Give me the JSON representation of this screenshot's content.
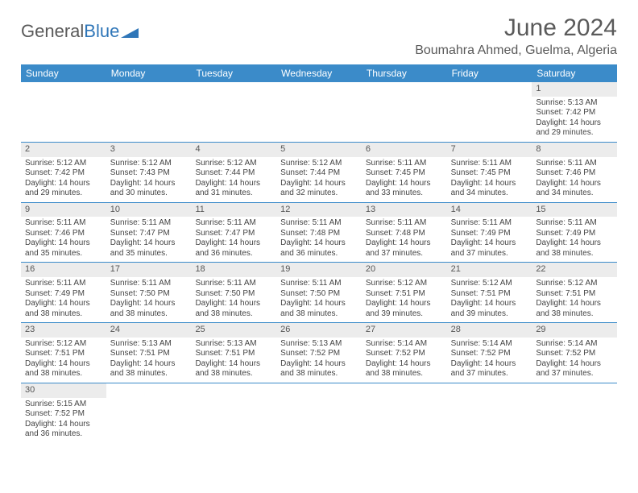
{
  "logo": {
    "text1": "General",
    "text2": "Blue",
    "triangle_color": "#2f76b8"
  },
  "title": "June 2024",
  "location": "Boumahra Ahmed, Guelma, Algeria",
  "header_bg": "#3b8bc9",
  "header_text_color": "#ffffff",
  "shaded_bg": "#ececec",
  "border_color": "#3b8bc9",
  "weekdays": [
    "Sunday",
    "Monday",
    "Tuesday",
    "Wednesday",
    "Thursday",
    "Friday",
    "Saturday"
  ],
  "weeks": [
    [
      {
        "day": "",
        "sunrise": "",
        "sunset": "",
        "daylight1": "",
        "daylight2": ""
      },
      {
        "day": "",
        "sunrise": "",
        "sunset": "",
        "daylight1": "",
        "daylight2": ""
      },
      {
        "day": "",
        "sunrise": "",
        "sunset": "",
        "daylight1": "",
        "daylight2": ""
      },
      {
        "day": "",
        "sunrise": "",
        "sunset": "",
        "daylight1": "",
        "daylight2": ""
      },
      {
        "day": "",
        "sunrise": "",
        "sunset": "",
        "daylight1": "",
        "daylight2": ""
      },
      {
        "day": "",
        "sunrise": "",
        "sunset": "",
        "daylight1": "",
        "daylight2": ""
      },
      {
        "day": "1",
        "sunrise": "Sunrise: 5:13 AM",
        "sunset": "Sunset: 7:42 PM",
        "daylight1": "Daylight: 14 hours",
        "daylight2": "and 29 minutes."
      }
    ],
    [
      {
        "day": "2",
        "sunrise": "Sunrise: 5:12 AM",
        "sunset": "Sunset: 7:42 PM",
        "daylight1": "Daylight: 14 hours",
        "daylight2": "and 29 minutes."
      },
      {
        "day": "3",
        "sunrise": "Sunrise: 5:12 AM",
        "sunset": "Sunset: 7:43 PM",
        "daylight1": "Daylight: 14 hours",
        "daylight2": "and 30 minutes."
      },
      {
        "day": "4",
        "sunrise": "Sunrise: 5:12 AM",
        "sunset": "Sunset: 7:44 PM",
        "daylight1": "Daylight: 14 hours",
        "daylight2": "and 31 minutes."
      },
      {
        "day": "5",
        "sunrise": "Sunrise: 5:12 AM",
        "sunset": "Sunset: 7:44 PM",
        "daylight1": "Daylight: 14 hours",
        "daylight2": "and 32 minutes."
      },
      {
        "day": "6",
        "sunrise": "Sunrise: 5:11 AM",
        "sunset": "Sunset: 7:45 PM",
        "daylight1": "Daylight: 14 hours",
        "daylight2": "and 33 minutes."
      },
      {
        "day": "7",
        "sunrise": "Sunrise: 5:11 AM",
        "sunset": "Sunset: 7:45 PM",
        "daylight1": "Daylight: 14 hours",
        "daylight2": "and 34 minutes."
      },
      {
        "day": "8",
        "sunrise": "Sunrise: 5:11 AM",
        "sunset": "Sunset: 7:46 PM",
        "daylight1": "Daylight: 14 hours",
        "daylight2": "and 34 minutes."
      }
    ],
    [
      {
        "day": "9",
        "sunrise": "Sunrise: 5:11 AM",
        "sunset": "Sunset: 7:46 PM",
        "daylight1": "Daylight: 14 hours",
        "daylight2": "and 35 minutes."
      },
      {
        "day": "10",
        "sunrise": "Sunrise: 5:11 AM",
        "sunset": "Sunset: 7:47 PM",
        "daylight1": "Daylight: 14 hours",
        "daylight2": "and 35 minutes."
      },
      {
        "day": "11",
        "sunrise": "Sunrise: 5:11 AM",
        "sunset": "Sunset: 7:47 PM",
        "daylight1": "Daylight: 14 hours",
        "daylight2": "and 36 minutes."
      },
      {
        "day": "12",
        "sunrise": "Sunrise: 5:11 AM",
        "sunset": "Sunset: 7:48 PM",
        "daylight1": "Daylight: 14 hours",
        "daylight2": "and 36 minutes."
      },
      {
        "day": "13",
        "sunrise": "Sunrise: 5:11 AM",
        "sunset": "Sunset: 7:48 PM",
        "daylight1": "Daylight: 14 hours",
        "daylight2": "and 37 minutes."
      },
      {
        "day": "14",
        "sunrise": "Sunrise: 5:11 AM",
        "sunset": "Sunset: 7:49 PM",
        "daylight1": "Daylight: 14 hours",
        "daylight2": "and 37 minutes."
      },
      {
        "day": "15",
        "sunrise": "Sunrise: 5:11 AM",
        "sunset": "Sunset: 7:49 PM",
        "daylight1": "Daylight: 14 hours",
        "daylight2": "and 38 minutes."
      }
    ],
    [
      {
        "day": "16",
        "sunrise": "Sunrise: 5:11 AM",
        "sunset": "Sunset: 7:49 PM",
        "daylight1": "Daylight: 14 hours",
        "daylight2": "and 38 minutes."
      },
      {
        "day": "17",
        "sunrise": "Sunrise: 5:11 AM",
        "sunset": "Sunset: 7:50 PM",
        "daylight1": "Daylight: 14 hours",
        "daylight2": "and 38 minutes."
      },
      {
        "day": "18",
        "sunrise": "Sunrise: 5:11 AM",
        "sunset": "Sunset: 7:50 PM",
        "daylight1": "Daylight: 14 hours",
        "daylight2": "and 38 minutes."
      },
      {
        "day": "19",
        "sunrise": "Sunrise: 5:11 AM",
        "sunset": "Sunset: 7:50 PM",
        "daylight1": "Daylight: 14 hours",
        "daylight2": "and 38 minutes."
      },
      {
        "day": "20",
        "sunrise": "Sunrise: 5:12 AM",
        "sunset": "Sunset: 7:51 PM",
        "daylight1": "Daylight: 14 hours",
        "daylight2": "and 39 minutes."
      },
      {
        "day": "21",
        "sunrise": "Sunrise: 5:12 AM",
        "sunset": "Sunset: 7:51 PM",
        "daylight1": "Daylight: 14 hours",
        "daylight2": "and 39 minutes."
      },
      {
        "day": "22",
        "sunrise": "Sunrise: 5:12 AM",
        "sunset": "Sunset: 7:51 PM",
        "daylight1": "Daylight: 14 hours",
        "daylight2": "and 38 minutes."
      }
    ],
    [
      {
        "day": "23",
        "sunrise": "Sunrise: 5:12 AM",
        "sunset": "Sunset: 7:51 PM",
        "daylight1": "Daylight: 14 hours",
        "daylight2": "and 38 minutes."
      },
      {
        "day": "24",
        "sunrise": "Sunrise: 5:13 AM",
        "sunset": "Sunset: 7:51 PM",
        "daylight1": "Daylight: 14 hours",
        "daylight2": "and 38 minutes."
      },
      {
        "day": "25",
        "sunrise": "Sunrise: 5:13 AM",
        "sunset": "Sunset: 7:51 PM",
        "daylight1": "Daylight: 14 hours",
        "daylight2": "and 38 minutes."
      },
      {
        "day": "26",
        "sunrise": "Sunrise: 5:13 AM",
        "sunset": "Sunset: 7:52 PM",
        "daylight1": "Daylight: 14 hours",
        "daylight2": "and 38 minutes."
      },
      {
        "day": "27",
        "sunrise": "Sunrise: 5:14 AM",
        "sunset": "Sunset: 7:52 PM",
        "daylight1": "Daylight: 14 hours",
        "daylight2": "and 38 minutes."
      },
      {
        "day": "28",
        "sunrise": "Sunrise: 5:14 AM",
        "sunset": "Sunset: 7:52 PM",
        "daylight1": "Daylight: 14 hours",
        "daylight2": "and 37 minutes."
      },
      {
        "day": "29",
        "sunrise": "Sunrise: 5:14 AM",
        "sunset": "Sunset: 7:52 PM",
        "daylight1": "Daylight: 14 hours",
        "daylight2": "and 37 minutes."
      }
    ],
    [
      {
        "day": "30",
        "sunrise": "Sunrise: 5:15 AM",
        "sunset": "Sunset: 7:52 PM",
        "daylight1": "Daylight: 14 hours",
        "daylight2": "and 36 minutes."
      },
      {
        "day": "",
        "sunrise": "",
        "sunset": "",
        "daylight1": "",
        "daylight2": ""
      },
      {
        "day": "",
        "sunrise": "",
        "sunset": "",
        "daylight1": "",
        "daylight2": ""
      },
      {
        "day": "",
        "sunrise": "",
        "sunset": "",
        "daylight1": "",
        "daylight2": ""
      },
      {
        "day": "",
        "sunrise": "",
        "sunset": "",
        "daylight1": "",
        "daylight2": ""
      },
      {
        "day": "",
        "sunrise": "",
        "sunset": "",
        "daylight1": "",
        "daylight2": ""
      },
      {
        "day": "",
        "sunrise": "",
        "sunset": "",
        "daylight1": "",
        "daylight2": ""
      }
    ]
  ]
}
